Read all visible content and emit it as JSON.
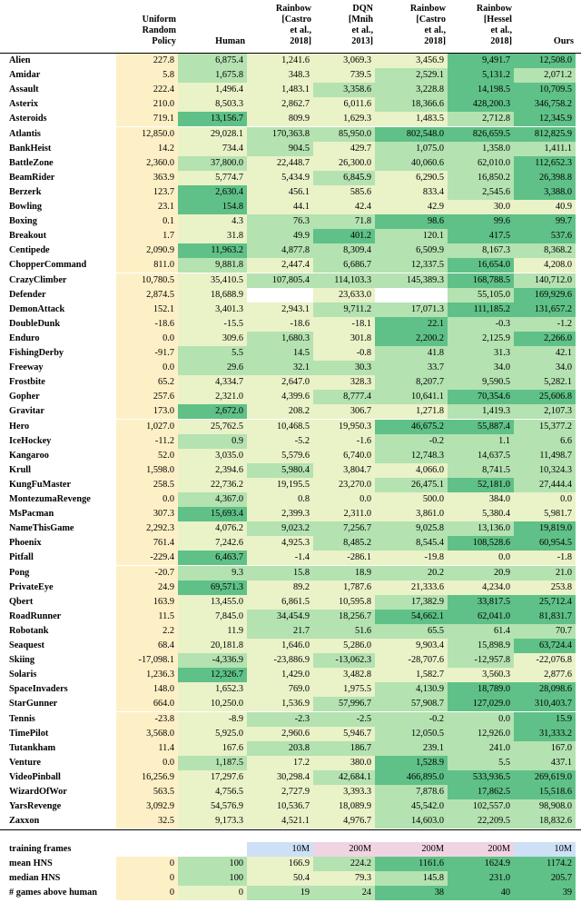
{
  "columns": [
    "Uniform\nRandom\nPolicy",
    "Human",
    "Rainbow\n[Castro\net al.,\n2018]",
    "DQN\n[Mnih\net al.,\n2013]",
    "Rainbow\n[Castro\net al.,\n2018]",
    "Rainbow\n[Hessel\net al.,\n2018]",
    "Ours"
  ],
  "rows": [
    [
      "Alien",
      "227.8",
      "6,875.4",
      "1,241.6",
      "3,069.3",
      "3,456.9",
      "9,491.7",
      "12,508.0"
    ],
    [
      "Amidar",
      "5.8",
      "1,675.8",
      "348.3",
      "739.5",
      "2,529.1",
      "5,131.2",
      "2,071.2"
    ],
    [
      "Assault",
      "222.4",
      "1,496.4",
      "1,483.1",
      "3,358.6",
      "3,228.8",
      "14,198.5",
      "10,709.5"
    ],
    [
      "Asterix",
      "210.0",
      "8,503.3",
      "2,862.7",
      "6,011.6",
      "18,366.6",
      "428,200.3",
      "346,758.2"
    ],
    [
      "Asteroids",
      "719.1",
      "13,156.7",
      "809.9",
      "1,629.3",
      "1,483.5",
      "2,712.8",
      "12,345.9"
    ],
    [
      "Atlantis",
      "12,850.0",
      "29,028.1",
      "170,363.8",
      "85,950.0",
      "802,548.0",
      "826,659.5",
      "812,825.9"
    ],
    [
      "BankHeist",
      "14.2",
      "734.4",
      "904.5",
      "429.7",
      "1,075.0",
      "1,358.0",
      "1,411.1"
    ],
    [
      "BattleZone",
      "2,360.0",
      "37,800.0",
      "22,448.7",
      "26,300.0",
      "40,060.6",
      "62,010.0",
      "112,652.3"
    ],
    [
      "BeamRider",
      "363.9",
      "5,774.7",
      "5,434.9",
      "6,845.9",
      "6,290.5",
      "16,850.2",
      "26,398.8"
    ],
    [
      "Berzerk",
      "123.7",
      "2,630.4",
      "456.1",
      "585.6",
      "833.4",
      "2,545.6",
      "3,388.0"
    ],
    [
      "Bowling",
      "23.1",
      "154.8",
      "44.1",
      "42.4",
      "42.9",
      "30.0",
      "40.9"
    ],
    [
      "Boxing",
      "0.1",
      "4.3",
      "76.3",
      "71.8",
      "98.6",
      "99.6",
      "99.7"
    ],
    [
      "Breakout",
      "1.7",
      "31.8",
      "49.9",
      "401.2",
      "120.1",
      "417.5",
      "537.6"
    ],
    [
      "Centipede",
      "2,090.9",
      "11,963.2",
      "4,877.8",
      "8,309.4",
      "6,509.9",
      "8,167.3",
      "8,368.2"
    ],
    [
      "ChopperCommand",
      "811.0",
      "9,881.8",
      "2,447.4",
      "6,686.7",
      "12,337.5",
      "16,654.0",
      "4,208.0"
    ],
    [
      "CrazyClimber",
      "10,780.5",
      "35,410.5",
      "107,805.4",
      "114,103.3",
      "145,389.3",
      "168,788.5",
      "140,712.0"
    ],
    [
      "Defender",
      "2,874.5",
      "18,688.9",
      "",
      "23,633.0",
      "",
      "55,105.0",
      "169,929.6"
    ],
    [
      "DemonAttack",
      "152.1",
      "3,401.3",
      "2,943.1",
      "9,711.2",
      "17,071.3",
      "111,185.2",
      "131,657.2"
    ],
    [
      "DoubleDunk",
      "-18.6",
      "-15.5",
      "-18.6",
      "-18.1",
      "22.1",
      "-0.3",
      "-1.2"
    ],
    [
      "Enduro",
      "0.0",
      "309.6",
      "1,680.3",
      "301.8",
      "2,200.2",
      "2,125.9",
      "2,266.0"
    ],
    [
      "FishingDerby",
      "-91.7",
      "5.5",
      "14.5",
      "-0.8",
      "41.8",
      "31.3",
      "42.1"
    ],
    [
      "Freeway",
      "0.0",
      "29.6",
      "32.1",
      "30.3",
      "33.7",
      "34.0",
      "34.0"
    ],
    [
      "Frostbite",
      "65.2",
      "4,334.7",
      "2,647.0",
      "328.3",
      "8,207.7",
      "9,590.5",
      "5,282.1"
    ],
    [
      "Gopher",
      "257.6",
      "2,321.0",
      "4,399.6",
      "8,777.4",
      "10,641.1",
      "70,354.6",
      "25,606.8"
    ],
    [
      "Gravitar",
      "173.0",
      "2,672.0",
      "208.2",
      "306.7",
      "1,271.8",
      "1,419.3",
      "2,107.3"
    ],
    [
      "Hero",
      "1,027.0",
      "25,762.5",
      "10,468.5",
      "19,950.3",
      "46,675.2",
      "55,887.4",
      "15,377.2"
    ],
    [
      "IceHockey",
      "-11.2",
      "0.9",
      "-5.2",
      "-1.6",
      "-0.2",
      "1.1",
      "6.6"
    ],
    [
      "Kangaroo",
      "52.0",
      "3,035.0",
      "5,579.6",
      "6,740.0",
      "12,748.3",
      "14,637.5",
      "11,498.7"
    ],
    [
      "Krull",
      "1,598.0",
      "2,394.6",
      "5,980.4",
      "3,804.7",
      "4,066.0",
      "8,741.5",
      "10,324.3"
    ],
    [
      "KungFuMaster",
      "258.5",
      "22,736.2",
      "19,195.5",
      "23,270.0",
      "26,475.1",
      "52,181.0",
      "27,444.4"
    ],
    [
      "MontezumaRevenge",
      "0.0",
      "4,367.0",
      "0.8",
      "0.0",
      "500.0",
      "384.0",
      "0.0"
    ],
    [
      "MsPacman",
      "307.3",
      "15,693.4",
      "2,399.3",
      "2,311.0",
      "3,861.0",
      "5,380.4",
      "5,981.7"
    ],
    [
      "NameThisGame",
      "2,292.3",
      "4,076.2",
      "9,023.2",
      "7,256.7",
      "9,025.8",
      "13,136.0",
      "19,819.0"
    ],
    [
      "Phoenix",
      "761.4",
      "7,242.6",
      "4,925.3",
      "8,485.2",
      "8,545.4",
      "108,528.6",
      "60,954.5"
    ],
    [
      "Pitfall",
      "-229.4",
      "6,463.7",
      "-1.4",
      "-286.1",
      "-19.8",
      "0.0",
      "-1.8"
    ],
    [
      "Pong",
      "-20.7",
      "9.3",
      "15.8",
      "18.9",
      "20.2",
      "20.9",
      "21.0"
    ],
    [
      "PrivateEye",
      "24.9",
      "69,571.3",
      "89.2",
      "1,787.6",
      "21,333.6",
      "4,234.0",
      "253.8"
    ],
    [
      "Qbert",
      "163.9",
      "13,455.0",
      "6,861.5",
      "10,595.8",
      "17,382.9",
      "33,817.5",
      "25,712.4"
    ],
    [
      "RoadRunner",
      "11.5",
      "7,845.0",
      "34,454.9",
      "18,256.7",
      "54,662.1",
      "62,041.0",
      "81,831.7"
    ],
    [
      "Robotank",
      "2.2",
      "11.9",
      "21.7",
      "51.6",
      "65.5",
      "61.4",
      "70.7"
    ],
    [
      "Seaquest",
      "68.4",
      "20,181.8",
      "1,646.0",
      "5,286.0",
      "9,903.4",
      "15,898.9",
      "63,724.4"
    ],
    [
      "Skiing",
      "-17,098.1",
      "-4,336.9",
      "-23,886.9",
      "-13,062.3",
      "-28,707.6",
      "-12,957.8",
      "-22,076.8"
    ],
    [
      "Solaris",
      "1,236.3",
      "12,326.7",
      "1,429.0",
      "3,482.8",
      "1,582.7",
      "3,560.3",
      "2,877.6"
    ],
    [
      "SpaceInvaders",
      "148.0",
      "1,652.3",
      "769.0",
      "1,975.5",
      "4,130.9",
      "18,789.0",
      "28,098.6"
    ],
    [
      "StarGunner",
      "664.0",
      "10,250.0",
      "1,536.9",
      "57,996.7",
      "57,908.7",
      "127,029.0",
      "310,403.7"
    ],
    [
      "Tennis",
      "-23.8",
      "-8.9",
      "-2.3",
      "-2.5",
      "-0.2",
      "0.0",
      "15.9"
    ],
    [
      "TimePilot",
      "3,568.0",
      "5,925.0",
      "2,960.6",
      "5,946.7",
      "12,050.5",
      "12,926.0",
      "31,333.2"
    ],
    [
      "Tutankham",
      "11.4",
      "167.6",
      "203.8",
      "186.7",
      "239.1",
      "241.0",
      "167.0"
    ],
    [
      "Venture",
      "0.0",
      "1,187.5",
      "17.2",
      "380.0",
      "1,528.9",
      "5.5",
      "437.1"
    ],
    [
      "VideoPinball",
      "16,256.9",
      "17,297.6",
      "30,298.4",
      "42,684.1",
      "466,895.0",
      "533,936.5",
      "269,619.0"
    ],
    [
      "WizardOfWor",
      "563.5",
      "4,756.5",
      "2,727.9",
      "3,393.3",
      "7,878.6",
      "17,862.5",
      "15,518.6"
    ],
    [
      "YarsRevenge",
      "3,092.9",
      "54,576.9",
      "10,536.7",
      "18,089.9",
      "45,542.0",
      "102,557.0",
      "98,908.0"
    ],
    [
      "Zaxxon",
      "32.5",
      "9,173.3",
      "4,521.1",
      "4,976.7",
      "14,603.0",
      "22,209.5",
      "18,832.6"
    ]
  ],
  "shades": [
    [
      1,
      2,
      1,
      1,
      1,
      3,
      3
    ],
    [
      1,
      2,
      1,
      1,
      2,
      3,
      2
    ],
    [
      1,
      1,
      1,
      2,
      2,
      3,
      3
    ],
    [
      1,
      1,
      1,
      1,
      2,
      3,
      3
    ],
    [
      1,
      3,
      1,
      1,
      1,
      2,
      3
    ],
    [
      1,
      1,
      2,
      2,
      3,
      3,
      3
    ],
    [
      1,
      1,
      2,
      1,
      2,
      2,
      2
    ],
    [
      1,
      2,
      1,
      1,
      2,
      2,
      3
    ],
    [
      1,
      1,
      1,
      2,
      1,
      2,
      3
    ],
    [
      1,
      3,
      1,
      1,
      1,
      2,
      3
    ],
    [
      1,
      3,
      1,
      1,
      1,
      1,
      1
    ],
    [
      1,
      1,
      2,
      2,
      3,
      3,
      3
    ],
    [
      1,
      1,
      2,
      3,
      2,
      3,
      3
    ],
    [
      1,
      3,
      2,
      2,
      2,
      2,
      2
    ],
    [
      1,
      2,
      1,
      2,
      2,
      3,
      1
    ],
    [
      1,
      1,
      2,
      2,
      2,
      3,
      2
    ],
    [
      1,
      1,
      0,
      1,
      0,
      2,
      3
    ],
    [
      1,
      1,
      1,
      2,
      2,
      3,
      3
    ],
    [
      1,
      1,
      1,
      1,
      3,
      2,
      2
    ],
    [
      1,
      1,
      2,
      1,
      3,
      2,
      3
    ],
    [
      1,
      2,
      2,
      1,
      2,
      2,
      2
    ],
    [
      1,
      2,
      2,
      2,
      2,
      2,
      2
    ],
    [
      1,
      1,
      1,
      1,
      2,
      2,
      2
    ],
    [
      1,
      1,
      1,
      2,
      2,
      3,
      3
    ],
    [
      1,
      3,
      1,
      1,
      1,
      2,
      2
    ],
    [
      1,
      1,
      1,
      1,
      3,
      3,
      2
    ],
    [
      1,
      2,
      1,
      1,
      2,
      2,
      2
    ],
    [
      1,
      1,
      1,
      1,
      2,
      2,
      2
    ],
    [
      1,
      1,
      2,
      1,
      1,
      2,
      2
    ],
    [
      1,
      1,
      1,
      1,
      2,
      3,
      2
    ],
    [
      1,
      2,
      1,
      1,
      1,
      1,
      1
    ],
    [
      1,
      3,
      1,
      1,
      1,
      1,
      1
    ],
    [
      1,
      1,
      2,
      2,
      2,
      2,
      3
    ],
    [
      1,
      1,
      1,
      2,
      2,
      3,
      3
    ],
    [
      1,
      3,
      1,
      1,
      1,
      1,
      1
    ],
    [
      1,
      2,
      2,
      2,
      2,
      2,
      2
    ],
    [
      1,
      3,
      1,
      1,
      1,
      1,
      1
    ],
    [
      1,
      1,
      1,
      1,
      2,
      3,
      3
    ],
    [
      1,
      1,
      2,
      2,
      3,
      3,
      3
    ],
    [
      1,
      1,
      2,
      2,
      2,
      2,
      2
    ],
    [
      1,
      1,
      1,
      1,
      1,
      2,
      3
    ],
    [
      1,
      2,
      1,
      2,
      1,
      2,
      1
    ],
    [
      1,
      3,
      1,
      1,
      1,
      1,
      1
    ],
    [
      1,
      1,
      1,
      1,
      2,
      3,
      3
    ],
    [
      1,
      1,
      1,
      2,
      2,
      3,
      3
    ],
    [
      1,
      1,
      2,
      2,
      2,
      2,
      3
    ],
    [
      1,
      1,
      1,
      1,
      2,
      2,
      3
    ],
    [
      1,
      1,
      2,
      2,
      2,
      2,
      2
    ],
    [
      1,
      2,
      1,
      1,
      3,
      2,
      2
    ],
    [
      1,
      1,
      1,
      2,
      3,
      3,
      3
    ],
    [
      1,
      1,
      1,
      1,
      2,
      3,
      3
    ],
    [
      1,
      1,
      1,
      1,
      2,
      2,
      2
    ],
    [
      1,
      1,
      1,
      1,
      2,
      2,
      2
    ]
  ],
  "footer": [
    {
      "label": "training frames",
      "values": [
        "",
        "",
        "10M",
        "200M",
        "200M",
        "200M",
        "10M"
      ]
    },
    {
      "label": "mean HNS",
      "values": [
        "0",
        "100",
        "166.9",
        "224.2",
        "1161.6",
        "1624.9",
        "1174.2"
      ]
    },
    {
      "label": "median HNS",
      "values": [
        "0",
        "100",
        "50.4",
        "79.3",
        "145.8",
        "231.0",
        "205.7"
      ]
    },
    {
      "label": "# games above human",
      "values": [
        "0",
        "0",
        "19",
        "24",
        "38",
        "40",
        "39"
      ]
    }
  ],
  "footer_shades": [
    [
      0,
      0,
      4,
      5,
      5,
      5,
      4
    ],
    [
      1,
      2,
      1,
      2,
      3,
      3,
      3
    ],
    [
      1,
      2,
      1,
      1,
      2,
      3,
      3
    ],
    [
      1,
      1,
      2,
      2,
      3,
      3,
      3
    ]
  ],
  "palette": {
    "blank": "#ffffff",
    "random": "#fdf0c6",
    "low": "#eaf2c8",
    "mid": "#b4e2b1",
    "high": "#5fc187",
    "blue": "#cde0f6",
    "pink": "#f0d4e2"
  }
}
